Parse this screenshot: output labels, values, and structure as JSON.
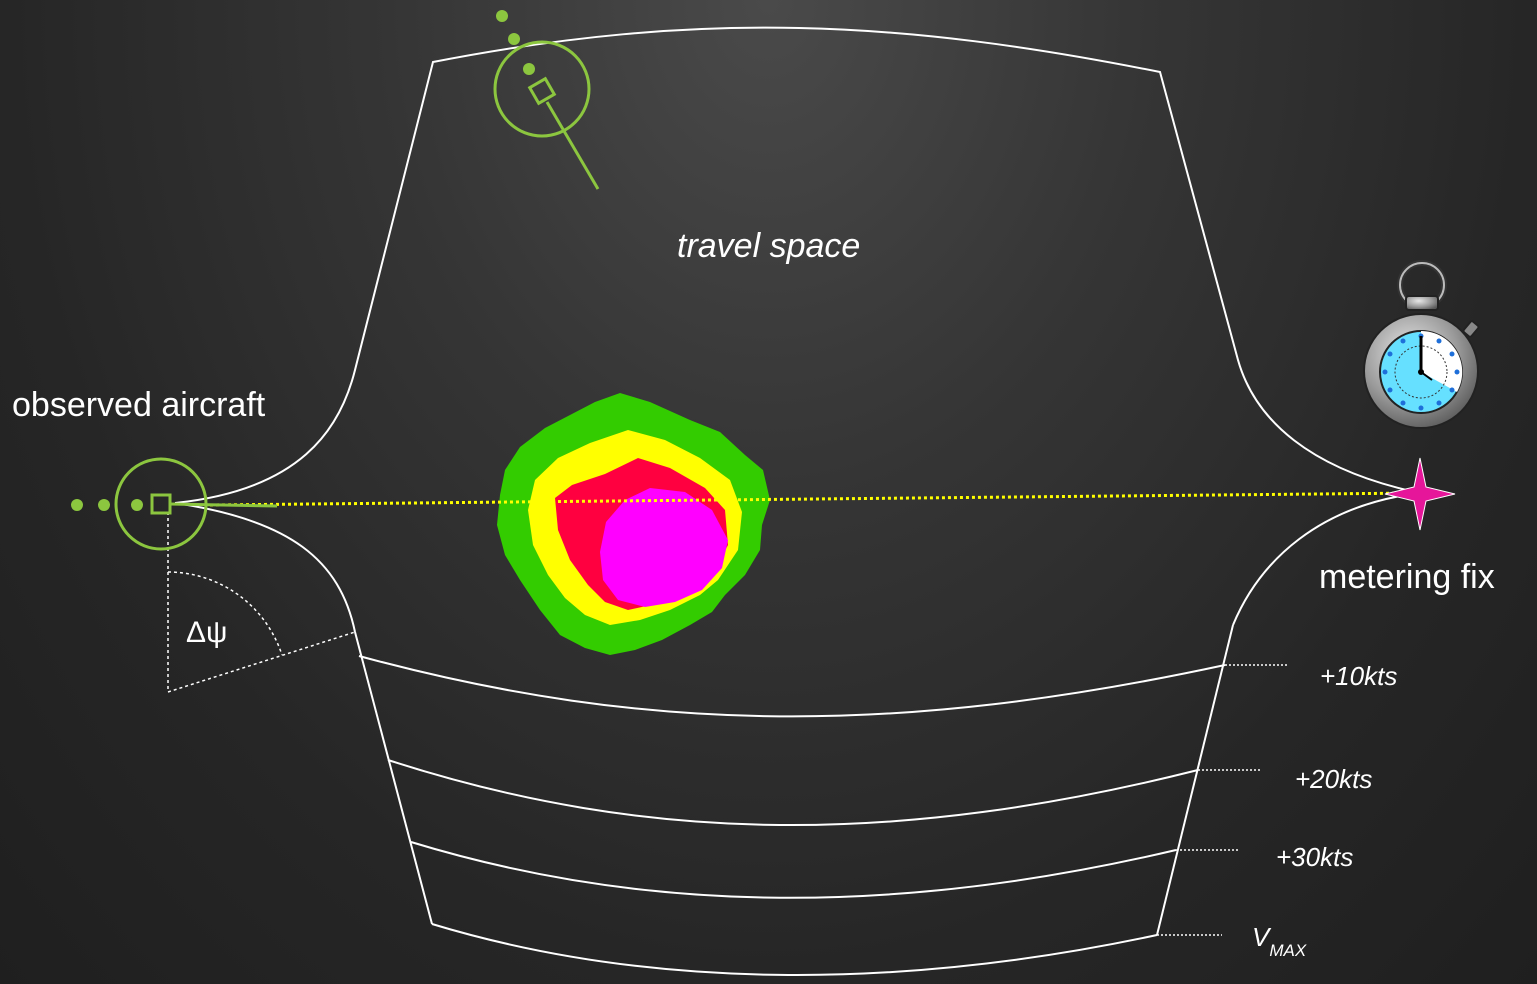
{
  "labels": {
    "travel_space": "travel space",
    "observed_aircraft": "observed aircraft",
    "metering_fix": "metering fix",
    "delta_psi": "Δψ",
    "speed_10": "+10kts",
    "speed_20": "+20kts",
    "speed_30": "+30kts",
    "vmax_main": "V",
    "vmax_sub": "MAX"
  },
  "colors": {
    "aircraft": "#8cc63f",
    "boundary": "#ffffff",
    "route": "#ffff00",
    "weather_outer": "#33cc00",
    "weather_mid": "#ffff00",
    "weather_inner": "#ff0040",
    "weather_core": "#ff00ff",
    "metering_fix": "#e6169a",
    "stopwatch_face": "#66e0ff"
  },
  "icons": {
    "aircraft": "aircraft-icon",
    "metering_fix": "metering-fix-star-icon",
    "stopwatch": "stopwatch-icon"
  }
}
